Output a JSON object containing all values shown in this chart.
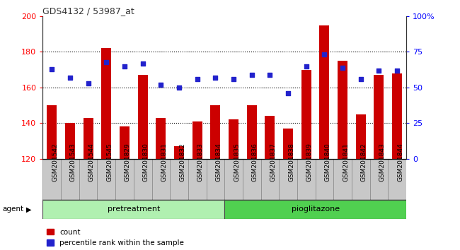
{
  "title": "GDS4132 / 53987_at",
  "samples": [
    "GSM201542",
    "GSM201543",
    "GSM201544",
    "GSM201545",
    "GSM201829",
    "GSM201830",
    "GSM201831",
    "GSM201832",
    "GSM201833",
    "GSM201834",
    "GSM201835",
    "GSM201836",
    "GSM201837",
    "GSM201838",
    "GSM201839",
    "GSM201840",
    "GSM201841",
    "GSM201842",
    "GSM201843",
    "GSM201844"
  ],
  "counts": [
    150,
    140,
    143,
    182,
    138,
    167,
    143,
    127,
    141,
    150,
    142,
    150,
    144,
    137,
    170,
    195,
    175,
    145,
    167,
    168
  ],
  "percentiles": [
    63,
    57,
    53,
    68,
    65,
    67,
    52,
    50,
    56,
    57,
    56,
    59,
    59,
    46,
    65,
    73,
    64,
    56,
    62,
    62
  ],
  "group1_count": 10,
  "group2_count": 10,
  "bar_color": "#cc0000",
  "dot_color": "#2222cc",
  "bar_bottom": 120,
  "ylim_left": [
    120,
    200
  ],
  "ylim_right": [
    0,
    100
  ],
  "yticks_left": [
    120,
    140,
    160,
    180,
    200
  ],
  "yticks_right": [
    0,
    25,
    50,
    75,
    100
  ],
  "ytick_labels_right": [
    "0",
    "25",
    "50",
    "75",
    "100%"
  ],
  "agent_label": "agent",
  "legend_count": "count",
  "legend_percentile": "percentile rank within the sample",
  "bg_plot": "#ffffff",
  "cell_bg": "#d0d0d0",
  "group1_color": "#b0f0b0",
  "group2_color": "#50d050",
  "title_color": "#333333",
  "grid_color": "#000000",
  "group1_label": "pretreatment",
  "group2_label": "pioglitazone"
}
